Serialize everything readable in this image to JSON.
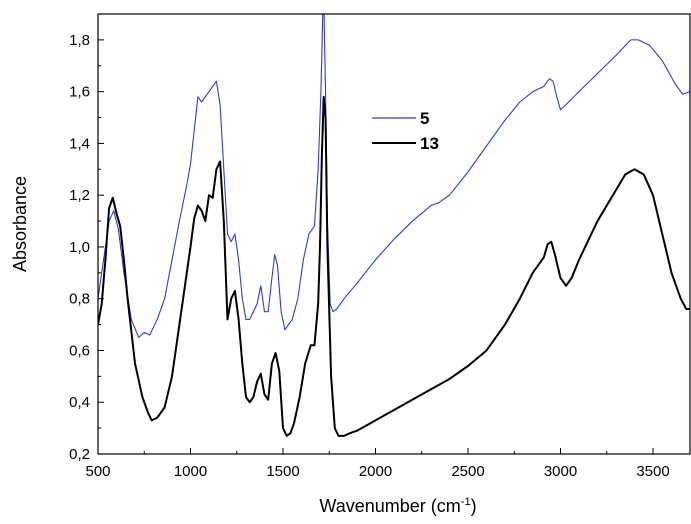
{
  "chart_data": {
    "type": "line",
    "title": "",
    "xlabel": "Wavenumber (cm",
    "xlabel_sup": "-1",
    "xlabel_close": ")",
    "ylabel": "Absorbance",
    "xlim": [
      500,
      3700
    ],
    "ylim": [
      0.2,
      1.9
    ],
    "xticks": [
      500,
      1000,
      1500,
      2000,
      2500,
      3000,
      3500
    ],
    "xtick_labels": [
      "500",
      "1000",
      "1500",
      "2000",
      "2500",
      "3000",
      "3500"
    ],
    "yticks": [
      0.2,
      0.4,
      0.6,
      0.8,
      1.0,
      1.2,
      1.4,
      1.6,
      1.8
    ],
    "ytick_labels": [
      "0,2",
      "0,4",
      "0,6",
      "0,8",
      "1,0",
      "1,2",
      "1,4",
      "1,6",
      "1,8"
    ],
    "grid": false,
    "legend_position": "upper-center",
    "series": [
      {
        "name": "5",
        "color": "#2b3fc8",
        "x": [
          500,
          530,
          560,
          585,
          610,
          640,
          680,
          720,
          750,
          780,
          820,
          860,
          900,
          940,
          980,
          1000,
          1020,
          1040,
          1060,
          1080,
          1100,
          1120,
          1140,
          1160,
          1180,
          1200,
          1220,
          1240,
          1260,
          1280,
          1300,
          1320,
          1340,
          1360,
          1380,
          1400,
          1420,
          1440,
          1455,
          1470,
          1490,
          1510,
          1530,
          1550,
          1580,
          1610,
          1640,
          1670,
          1690,
          1705,
          1715,
          1722,
          1730,
          1740,
          1755,
          1770,
          1790,
          1830,
          1900,
          2000,
          2100,
          2200,
          2300,
          2340,
          2360,
          2380,
          2400,
          2500,
          2600,
          2700,
          2780,
          2850,
          2880,
          2910,
          2940,
          2960,
          2980,
          3000,
          3030,
          3100,
          3200,
          3300,
          3380,
          3420,
          3480,
          3550,
          3620,
          3660,
          3700
        ],
        "y": [
          0.8,
          0.95,
          1.1,
          1.14,
          1.07,
          0.9,
          0.72,
          0.65,
          0.67,
          0.66,
          0.72,
          0.8,
          0.95,
          1.1,
          1.24,
          1.32,
          1.45,
          1.58,
          1.56,
          1.58,
          1.6,
          1.62,
          1.64,
          1.55,
          1.3,
          1.05,
          1.02,
          1.05,
          0.95,
          0.8,
          0.72,
          0.72,
          0.75,
          0.78,
          0.85,
          0.75,
          0.75,
          0.88,
          0.97,
          0.93,
          0.75,
          0.68,
          0.7,
          0.72,
          0.8,
          0.95,
          1.05,
          1.08,
          1.3,
          1.6,
          1.9,
          1.9,
          1.6,
          1.1,
          0.78,
          0.75,
          0.76,
          0.8,
          0.86,
          0.95,
          1.03,
          1.1,
          1.16,
          1.17,
          1.18,
          1.19,
          1.2,
          1.29,
          1.39,
          1.49,
          1.56,
          1.6,
          1.61,
          1.62,
          1.65,
          1.64,
          1.58,
          1.53,
          1.55,
          1.6,
          1.67,
          1.74,
          1.8,
          1.8,
          1.78,
          1.72,
          1.63,
          1.59,
          1.6
        ]
      },
      {
        "name": "13",
        "color": "#000000",
        "x": [
          500,
          520,
          540,
          560,
          580,
          600,
          620,
          640,
          660,
          700,
          740,
          770,
          790,
          820,
          860,
          900,
          940,
          980,
          1000,
          1020,
          1040,
          1060,
          1080,
          1100,
          1120,
          1140,
          1160,
          1180,
          1200,
          1220,
          1240,
          1260,
          1280,
          1300,
          1320,
          1340,
          1360,
          1380,
          1400,
          1420,
          1440,
          1460,
          1480,
          1500,
          1520,
          1540,
          1560,
          1590,
          1620,
          1650,
          1670,
          1690,
          1700,
          1710,
          1720,
          1730,
          1740,
          1760,
          1780,
          1800,
          1830,
          1860,
          1900,
          2000,
          2100,
          2200,
          2300,
          2350,
          2400,
          2500,
          2600,
          2700,
          2780,
          2850,
          2880,
          2910,
          2930,
          2950,
          2970,
          3000,
          3030,
          3060,
          3100,
          3200,
          3300,
          3350,
          3400,
          3450,
          3500,
          3550,
          3600,
          3650,
          3680,
          3700
        ],
        "y": [
          0.7,
          0.78,
          0.95,
          1.15,
          1.19,
          1.13,
          1.08,
          0.95,
          0.8,
          0.55,
          0.42,
          0.36,
          0.33,
          0.34,
          0.38,
          0.5,
          0.7,
          0.9,
          1.0,
          1.11,
          1.16,
          1.14,
          1.1,
          1.2,
          1.19,
          1.3,
          1.33,
          1.1,
          0.72,
          0.8,
          0.83,
          0.72,
          0.55,
          0.42,
          0.4,
          0.42,
          0.48,
          0.51,
          0.43,
          0.41,
          0.55,
          0.59,
          0.52,
          0.3,
          0.27,
          0.28,
          0.32,
          0.42,
          0.55,
          0.62,
          0.62,
          0.78,
          1.0,
          1.35,
          1.58,
          1.5,
          1.0,
          0.5,
          0.3,
          0.27,
          0.27,
          0.28,
          0.29,
          0.33,
          0.37,
          0.41,
          0.45,
          0.47,
          0.49,
          0.54,
          0.6,
          0.7,
          0.8,
          0.9,
          0.93,
          0.96,
          1.01,
          1.02,
          0.97,
          0.88,
          0.85,
          0.88,
          0.95,
          1.1,
          1.22,
          1.28,
          1.3,
          1.28,
          1.2,
          1.05,
          0.9,
          0.8,
          0.76,
          0.76
        ]
      }
    ]
  }
}
